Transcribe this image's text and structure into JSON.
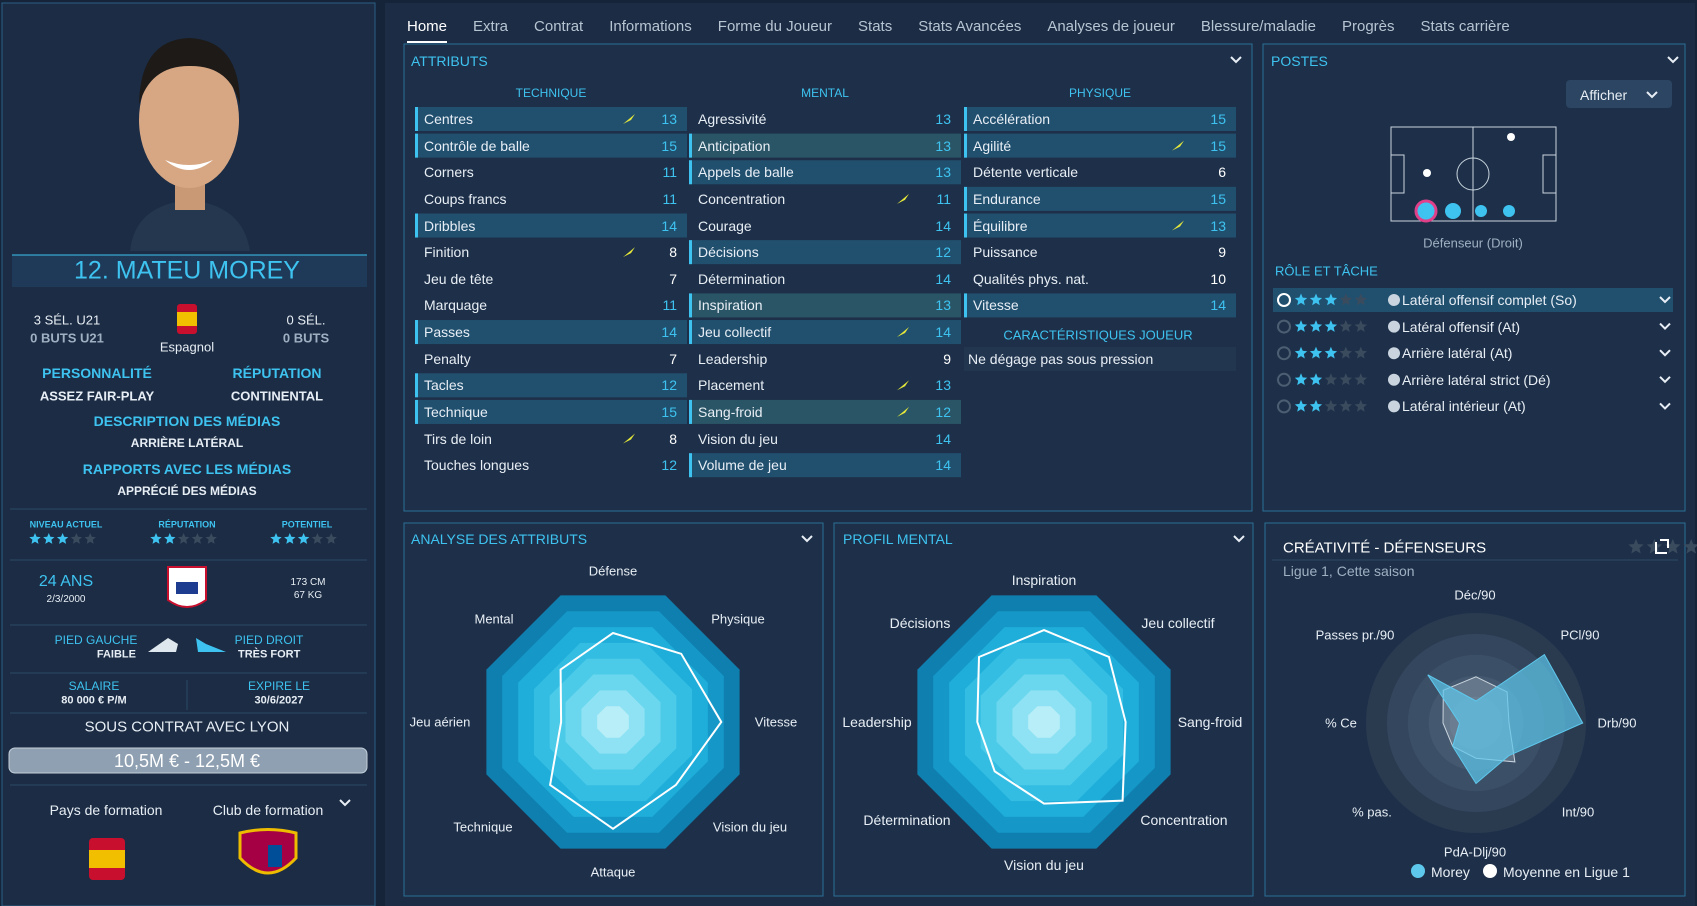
{
  "tabs": [
    "Home",
    "Extra",
    "Contrat",
    "Informations",
    "Forme du Joueur",
    "Stats",
    "Stats Avancées",
    "Analyses de joueur",
    "Blessure/maladie",
    "Progrès",
    "Stats carrière"
  ],
  "player": {
    "name": "12. MATEU MOREY",
    "caps_u21": "3 SÉL. U21",
    "goals_u21": "0 BUTS U21",
    "nationality": "Espagnol",
    "caps": "0 SÉL.",
    "goals": "0 BUTS",
    "personality_label": "PERSONNALITÉ",
    "personality": "ASSEZ FAIR-PLAY",
    "reputation_label": "RÉPUTATION",
    "reputation": "CONTINENTAL",
    "media_desc_label": "DESCRIPTION DES MÉDIAS",
    "media_desc": "ARRIÈRE LATÉRAL",
    "media_rel_label": "RAPPORTS AVEC LES MÉDIAS",
    "media_rel": "APPRÉCIÉ DES MÉDIAS",
    "ratings": [
      "NIVEAU ACTUEL",
      "RÉPUTATION",
      "POTENTIEL"
    ],
    "age": "24 ANS",
    "dob": "2/3/2000",
    "height": "173 CM",
    "weight": "67 KG",
    "left_foot_label": "PIED GAUCHE",
    "left_foot": "FAIBLE",
    "right_foot_label": "PIED DROIT",
    "right_foot": "TRÈS FORT",
    "salary_label": "SALAIRE",
    "salary": "80 000 € P/M",
    "expires_label": "EXPIRE LE",
    "expires": "30/6/2027",
    "contract": "SOUS CONTRAT AVEC LYON",
    "value": "10,5M € - 12,5M €",
    "training_nation": "Pays de formation",
    "training_club": "Club de formation"
  },
  "attributes": {
    "title": "ATTRIBUTS",
    "groups": [
      {
        "name": "TECHNIQUE",
        "items": [
          {
            "name": "Centres",
            "value": 13
          },
          {
            "name": "Contrôle de balle",
            "value": 15
          },
          {
            "name": "Corners",
            "value": 11
          },
          {
            "name": "Coups francs",
            "value": 11
          },
          {
            "name": "Dribbles",
            "value": 14
          },
          {
            "name": "Finition",
            "value": 8
          },
          {
            "name": "Jeu de tête",
            "value": 7
          },
          {
            "name": "Marquage",
            "value": 11
          },
          {
            "name": "Passes",
            "value": 14
          },
          {
            "name": "Penalty",
            "value": 7
          },
          {
            "name": "Tacles",
            "value": 12
          },
          {
            "name": "Technique",
            "value": 15
          },
          {
            "name": "Tirs de loin",
            "value": 8
          },
          {
            "name": "Touches longues",
            "value": 12
          }
        ]
      },
      {
        "name": "MENTAL",
        "items": [
          {
            "name": "Agressivité",
            "value": 13
          },
          {
            "name": "Anticipation",
            "value": 13
          },
          {
            "name": "Appels de balle",
            "value": 13
          },
          {
            "name": "Concentration",
            "value": 11
          },
          {
            "name": "Courage",
            "value": 14
          },
          {
            "name": "Décisions",
            "value": 12
          },
          {
            "name": "Détermination",
            "value": 14
          },
          {
            "name": "Inspiration",
            "value": 13
          },
          {
            "name": "Jeu collectif",
            "value": 14
          },
          {
            "name": "Leadership",
            "value": 9
          },
          {
            "name": "Placement",
            "value": 13
          },
          {
            "name": "Sang-froid",
            "value": 12
          },
          {
            "name": "Vision du jeu",
            "value": 14
          },
          {
            "name": "Volume de jeu",
            "value": 14
          }
        ]
      },
      {
        "name": "PHYSIQUE",
        "items": [
          {
            "name": "Accélération",
            "value": 15
          },
          {
            "name": "Agilité",
            "value": 15
          },
          {
            "name": "Détente verticale",
            "value": 6
          },
          {
            "name": "Endurance",
            "value": 15
          },
          {
            "name": "Équilibre",
            "value": 13
          },
          {
            "name": "Puissance",
            "value": 9
          },
          {
            "name": "Qualités phys. nat.",
            "value": 10
          },
          {
            "name": "Vitesse",
            "value": 14
          }
        ]
      }
    ],
    "traits_title": "CARACTÉRISTIQUES JOUEUR",
    "traits": [
      "Ne dégage pas sous pression"
    ]
  },
  "positions": {
    "title": "POSTES",
    "button": "Afficher",
    "position": "Défenseur (Droit)",
    "roles_title": "RÔLE ET TÂCHE",
    "roles": [
      "Latéral offensif complet (So)",
      "Latéral offensif (At)",
      "Arrière latéral (At)",
      "Arrière latéral strict (Dé)",
      "Latéral intérieur (At)"
    ]
  },
  "attribute_analysis": {
    "title": "ANALYSE DES ATTRIBUTS",
    "axes": [
      "Défense",
      "Physique",
      "Vitesse",
      "Vision du jeu",
      "Attaque",
      "Technique",
      "Jeu aérien",
      "Mental"
    ]
  },
  "mental_profile": {
    "title": "PROFIL MENTAL",
    "axes": [
      "Inspiration",
      "Jeu collectif",
      "Sang-froid",
      "Concentration",
      "Vision du jeu",
      "Détermination",
      "Leadership",
      "Décisions"
    ]
  },
  "creativity": {
    "title": "CRÉATIVITÉ - DÉFENSEURS",
    "subtitle": "Ligue 1, Cette saison",
    "axes": [
      "Déc/90",
      "PCl/90",
      "Drb/90",
      "Int/90",
      "PdA-Dlj/90",
      "% pas.",
      "% Ce",
      "Passes pr./90"
    ],
    "legend": [
      "Morey",
      "Moyenne en Ligue 1"
    ]
  }
}
